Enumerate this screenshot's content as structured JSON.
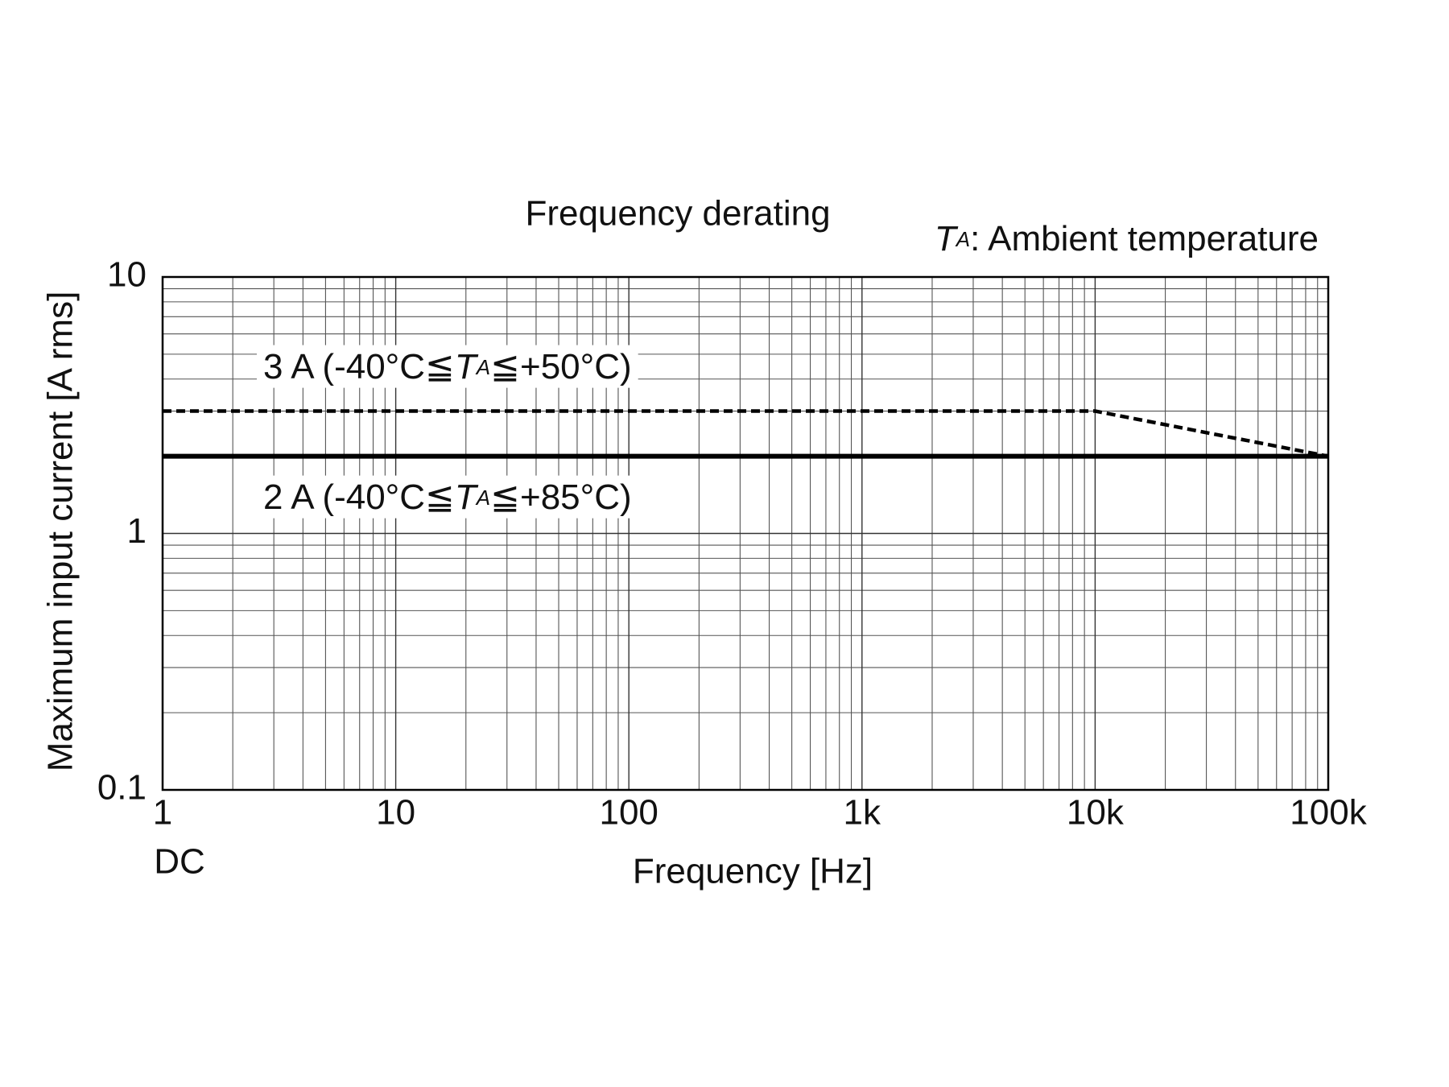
{
  "chart_data": {
    "type": "line",
    "title": "Frequency derating",
    "xlabel": "Frequency [Hz]",
    "ylabel": "Maximum input current [A rms]",
    "x_sublabel": "DC",
    "xscale": "log",
    "yscale": "log",
    "grid": true,
    "xlim": [
      1,
      100000
    ],
    "ylim": [
      0.1,
      10
    ],
    "xticks": [
      1,
      10,
      100,
      {
        "value": 1000,
        "label": "1k"
      },
      {
        "value": 10000,
        "label": "10k"
      },
      {
        "value": 100000,
        "label": "100k"
      }
    ],
    "yticks": [
      0.1,
      1,
      10
    ],
    "x_minor_ticks": [
      2,
      3,
      4,
      5,
      6,
      7,
      8,
      9,
      20,
      30,
      40,
      50,
      60,
      70,
      80,
      90,
      200,
      300,
      400,
      500,
      600,
      700,
      800,
      900,
      2000,
      3000,
      4000,
      5000,
      6000,
      7000,
      8000,
      9000,
      20000,
      30000,
      40000,
      50000,
      60000,
      70000,
      80000,
      90000
    ],
    "y_minor_ticks": [
      0.2,
      0.3,
      0.4,
      0.5,
      0.6,
      0.7,
      0.8,
      0.9,
      2,
      3,
      4,
      5,
      6,
      7,
      8,
      9
    ],
    "series": [
      {
        "color": "#000000",
        "dash": true,
        "x": [
          1,
          10000,
          100000
        ],
        "values": [
          3,
          3,
          2
        ]
      },
      {
        "color": "#000000",
        "dash": false,
        "x": [
          1,
          100000
        ],
        "values": [
          2,
          2
        ]
      }
    ],
    "annotations": [
      {
        "parts": [
          {
            "text": "T",
            "style": "italic"
          },
          {
            "text": "A",
            "style": "subscript"
          },
          {
            "text": ": Ambient temperature",
            "style": "normal"
          }
        ]
      },
      {
        "parts": [
          {
            "text": "3 A (-40°C≦",
            "style": "normal"
          },
          {
            "text": "T",
            "style": "italic"
          },
          {
            "text": "A",
            "style": "subscript"
          },
          {
            "text": "≦+50°C)",
            "style": "normal"
          }
        ]
      },
      {
        "parts": [
          {
            "text": "2 A (-40°C≦",
            "style": "normal"
          },
          {
            "text": "T",
            "style": "italic"
          },
          {
            "text": "A",
            "style": "subscript"
          },
          {
            "text": "≦+85°C)",
            "style": "normal"
          }
        ]
      }
    ]
  }
}
